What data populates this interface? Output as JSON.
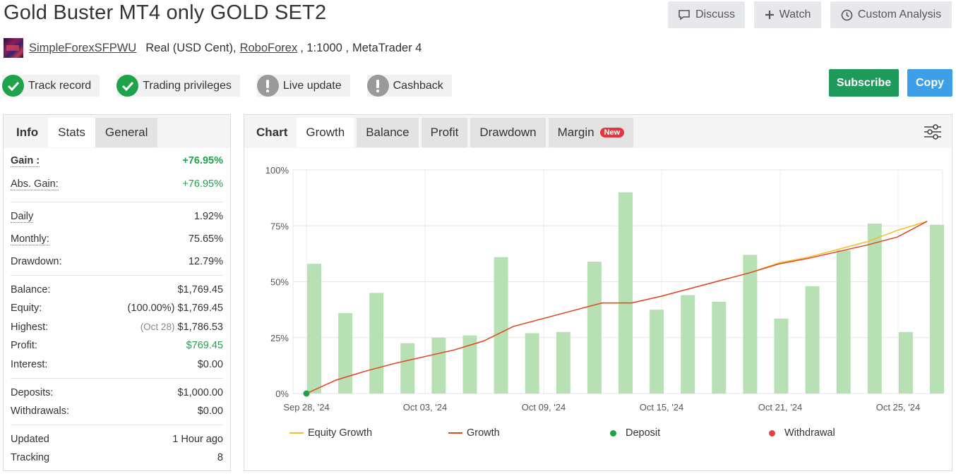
{
  "title": "Gold Buster MT4 only GOLD SET2",
  "header_buttons": {
    "discuss": "Discuss",
    "watch": "Watch",
    "custom_analysis": "Custom Analysis"
  },
  "account": {
    "owner": "SimpleForexSFPWU",
    "type": "Real (USD Cent),",
    "broker": "RoboForex",
    "leverage": ", 1:1000 ,",
    "platform": "MetaTrader 4"
  },
  "badges": [
    {
      "label": "Track record",
      "status": "ok"
    },
    {
      "label": "Trading privileges",
      "status": "ok"
    },
    {
      "label": "Live update",
      "status": "warn"
    },
    {
      "label": "Cashback",
      "status": "warn"
    }
  ],
  "actions": {
    "subscribe": "Subscribe",
    "copy": "Copy"
  },
  "left_tabs": {
    "info": "Info",
    "stats": "Stats",
    "general": "General"
  },
  "stats": {
    "gain_label": "Gain :",
    "gain": "+76.95%",
    "abs_gain_label": "Abs. Gain:",
    "abs_gain": "+76.95%",
    "daily_label": "Daily",
    "daily": "1.92%",
    "monthly_label": "Monthly:",
    "monthly": "75.65%",
    "drawdown_label": "Drawdown:",
    "drawdown": "12.79%",
    "balance_label": "Balance:",
    "balance": "$1,769.45",
    "equity_label": "Equity:",
    "equity_pct": "(100.00%)",
    "equity": "$1,769.45",
    "highest_label": "Highest:",
    "highest_date": "(Oct 28)",
    "highest": "$1,786.53",
    "profit_label": "Profit:",
    "profit": "$769.45",
    "interest_label": "Interest:",
    "interest": "$0.00",
    "deposits_label": "Deposits:",
    "deposits": "$1,000.00",
    "withdrawals_label": "Withdrawals:",
    "withdrawals": "$0.00",
    "updated_label": "Updated",
    "updated": "1 Hour ago",
    "tracking_label": "Tracking",
    "tracking": "8"
  },
  "chart_tabs": {
    "chart": "Chart",
    "growth": "Growth",
    "balance": "Balance",
    "profit": "Profit",
    "drawdown": "Drawdown",
    "margin": "Margin",
    "new_badge": "New"
  },
  "colors": {
    "bar": "#b7e0b4",
    "growth": "#e0452a",
    "equity": "#f2c02b",
    "deposit": "#1ea34a",
    "withdrawal": "#e04444",
    "subscribe": "#1e9a5a",
    "copy": "#3e9fe8"
  },
  "chart_data": {
    "type": "bar",
    "y_ticks": [
      "0%",
      "25%",
      "50%",
      "75%",
      "100%"
    ],
    "ylim": [
      0,
      100
    ],
    "x_tick_labels": [
      "Sep 28, '24",
      "Oct 03, '24",
      "Oct 09, '24",
      "Oct 15, '24",
      "Oct 21, '24",
      "Oct 25, '24"
    ],
    "bar_values": [
      58,
      36,
      45,
      22.5,
      25,
      26,
      61,
      27,
      27.5,
      59,
      90,
      37.5,
      44,
      41,
      62,
      33.5,
      48,
      64,
      76,
      27.5,
      75.5
    ],
    "series": [
      {
        "name": "Equity Growth",
        "values": [
          0,
          6,
          10,
          13.5,
          16.5,
          19.5,
          23.5,
          30,
          33.5,
          37,
          40.5,
          40.5,
          43.5,
          47,
          50.5,
          54,
          58.5,
          61,
          64.5,
          68,
          73,
          77
        ]
      },
      {
        "name": "Growth",
        "values": [
          0,
          6,
          10,
          13.5,
          16.5,
          19.5,
          23.5,
          30,
          33.5,
          37,
          40.5,
          40.5,
          43.5,
          47,
          50.5,
          54,
          58,
          60.5,
          63.5,
          66.5,
          70,
          77
        ]
      }
    ],
    "deposit_at_start": true,
    "legend": [
      "Equity Growth",
      "Growth",
      "Deposit",
      "Withdrawal"
    ]
  }
}
